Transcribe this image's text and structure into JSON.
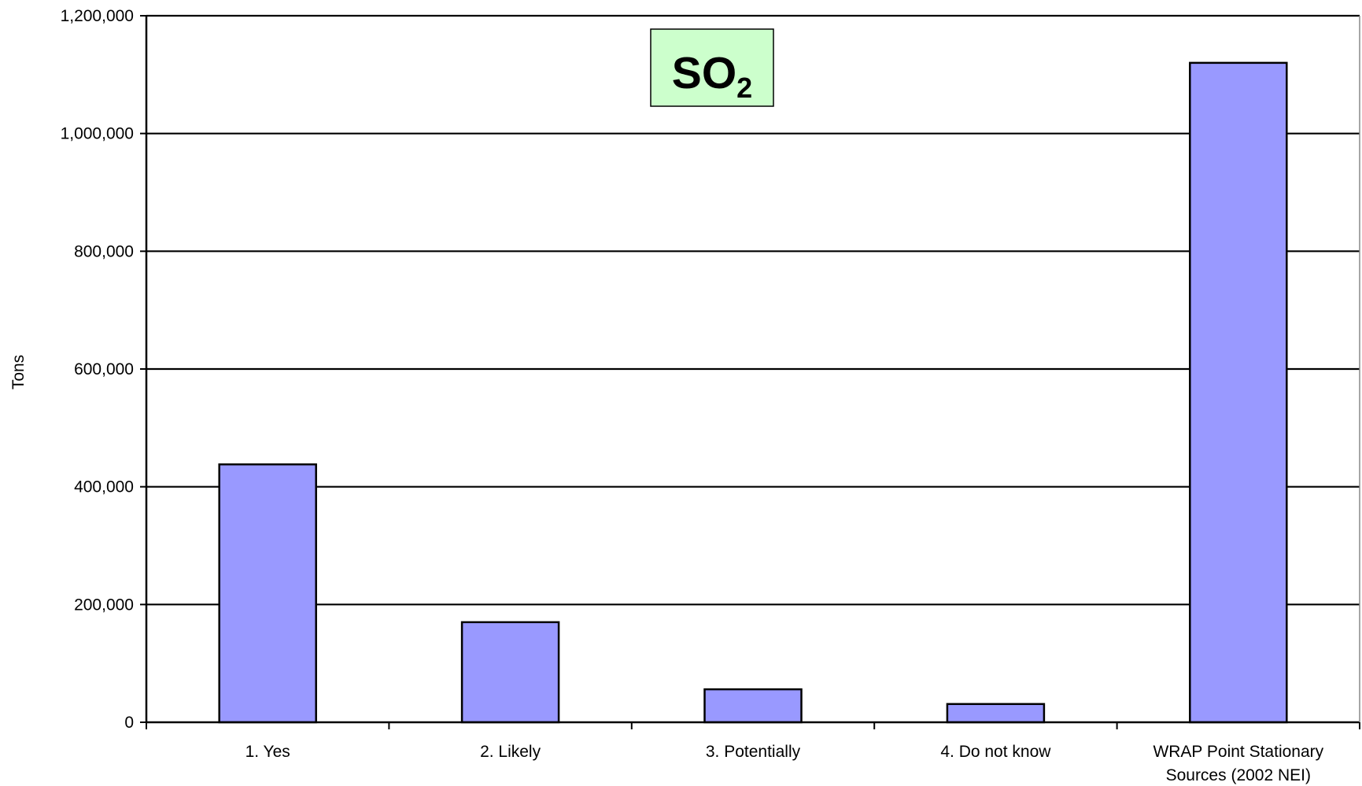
{
  "chart_data": {
    "type": "bar",
    "title": {
      "main": "SO",
      "subscript": "2"
    },
    "xlabel": "",
    "ylabel": "Tons",
    "categories": [
      [
        "1. Yes"
      ],
      [
        "2. Likely"
      ],
      [
        "3. Potentially"
      ],
      [
        "4. Do not know"
      ],
      [
        "WRAP Point Stationary",
        "Sources (2002 NEI)"
      ]
    ],
    "values": [
      438000,
      170000,
      56000,
      31000,
      1120000
    ],
    "ylim": [
      0,
      1200000
    ],
    "yticks": [
      0,
      200000,
      400000,
      600000,
      800000,
      1000000,
      1200000
    ],
    "ytick_labels": [
      "0",
      "200,000",
      "400,000",
      "600,000",
      "800,000",
      "1,000,000",
      "1,200,000"
    ],
    "grid": true,
    "legend": "none",
    "colors": {
      "bar_fill": "#9999ff",
      "bar_stroke": "#000000",
      "title_box_fill": "#ccffcc",
      "title_box_stroke": "#000000",
      "grid": "#000000",
      "text": "#000000"
    }
  }
}
